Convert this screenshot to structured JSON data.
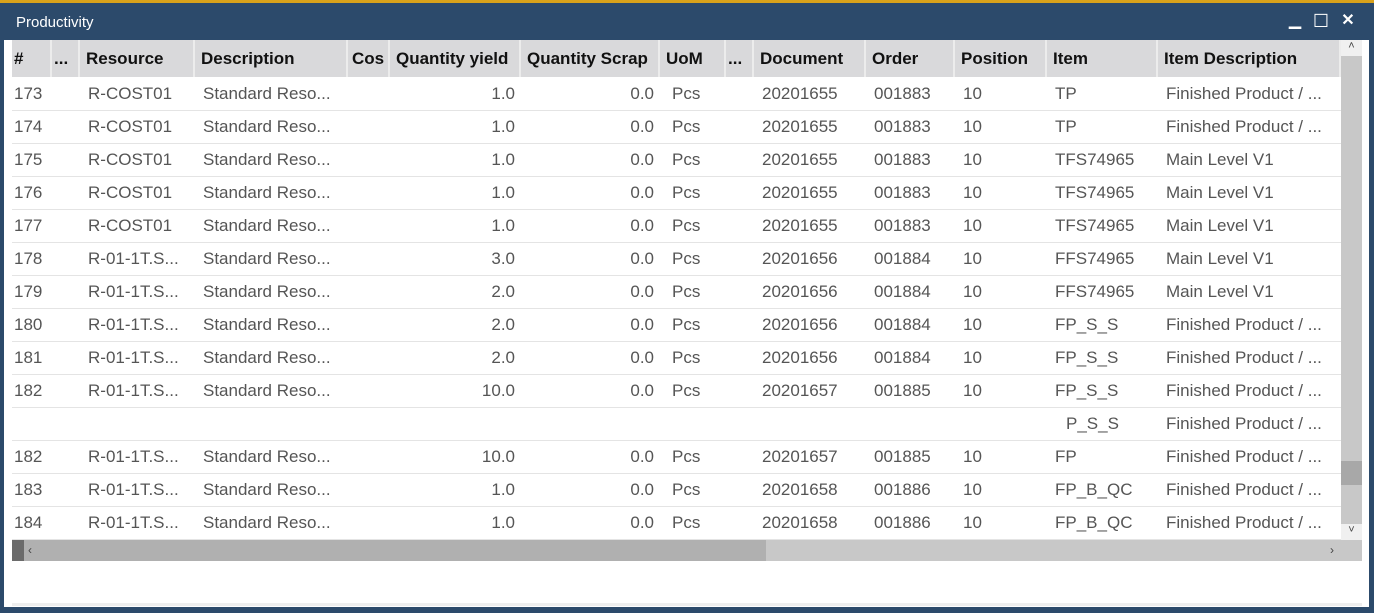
{
  "window": {
    "title": "Productivity",
    "minimize": "▁",
    "maximize": "☐",
    "close": "✕",
    "accent": "#d9a21b",
    "frame_color": "#2c4a6b"
  },
  "columns": [
    "#",
    "...",
    "Resource",
    "Description",
    "Cos",
    "Quantity yield",
    "Quantity Scrap",
    "UoM",
    "...",
    "Document",
    "Order",
    "Position",
    "Item",
    "Item Description"
  ],
  "rows": [
    [
      "173",
      "",
      "R-COST01",
      "Standard Reso...",
      "",
      "1.0",
      "0.0",
      "Pcs",
      "",
      "20201655",
      "001883",
      "10",
      "TP",
      "Finished Product / ..."
    ],
    [
      "174",
      "",
      "R-COST01",
      "Standard Reso...",
      "",
      "1.0",
      "0.0",
      "Pcs",
      "",
      "20201655",
      "001883",
      "10",
      "TP",
      "Finished Product / ..."
    ],
    [
      "175",
      "",
      "R-COST01",
      "Standard Reso...",
      "",
      "1.0",
      "0.0",
      "Pcs",
      "",
      "20201655",
      "001883",
      "10",
      "TFS74965",
      "Main Level V1"
    ],
    [
      "176",
      "",
      "R-COST01",
      "Standard Reso...",
      "",
      "1.0",
      "0.0",
      "Pcs",
      "",
      "20201655",
      "001883",
      "10",
      "TFS74965",
      "Main Level V1"
    ],
    [
      "177",
      "",
      "R-COST01",
      "Standard Reso...",
      "",
      "1.0",
      "0.0",
      "Pcs",
      "",
      "20201655",
      "001883",
      "10",
      "TFS74965",
      "Main Level V1"
    ],
    [
      "178",
      "",
      "R-01-1T.S...",
      "Standard Reso...",
      "",
      "3.0",
      "0.0",
      "Pcs",
      "",
      "20201656",
      "001884",
      "10",
      "FFS74965",
      "Main Level V1"
    ],
    [
      "179",
      "",
      "R-01-1T.S...",
      "Standard Reso...",
      "",
      "2.0",
      "0.0",
      "Pcs",
      "",
      "20201656",
      "001884",
      "10",
      "FFS74965",
      "Main Level V1"
    ],
    [
      "180",
      "",
      "R-01-1T.S...",
      "Standard Reso...",
      "",
      "2.0",
      "0.0",
      "Pcs",
      "",
      "20201656",
      "001884",
      "10",
      "FP_S_S",
      "Finished Product / ..."
    ],
    [
      "181",
      "",
      "R-01-1T.S...",
      "Standard Reso...",
      "",
      "2.0",
      "0.0",
      "Pcs",
      "",
      "20201656",
      "001884",
      "10",
      "FP_S_S",
      "Finished Product / ..."
    ],
    [
      "182",
      "",
      "R-01-1T.S...",
      "Standard Reso...",
      "",
      "10.0",
      "0.0",
      "Pcs",
      "",
      "20201657",
      "001885",
      "10",
      "FP_S_S",
      "Finished Product / ..."
    ],
    [
      "",
      "",
      "",
      "",
      "",
      "",
      "",
      "",
      "",
      "",
      "",
      "",
      "P_S_S",
      "Finished Product / ..."
    ],
    [
      "182",
      "",
      "R-01-1T.S...",
      "Standard Reso...",
      "",
      "10.0",
      "0.0",
      "Pcs",
      "",
      "20201657",
      "001885",
      "10",
      "FP",
      "Finished Product / ..."
    ],
    [
      "183",
      "",
      "R-01-1T.S...",
      "Standard Reso...",
      "",
      "1.0",
      "0.0",
      "Pcs",
      "",
      "20201658",
      "001886",
      "10",
      "FP_B_QC",
      "Finished Product / ..."
    ],
    [
      "184",
      "",
      "R-01-1T.S...",
      "Standard Reso...",
      "",
      "1.0",
      "0.0",
      "Pcs",
      "",
      "20201658",
      "001886",
      "10",
      "FP_B_QC",
      "Finished Product / ..."
    ]
  ],
  "scroll": {
    "up": "˄",
    "down": "˅",
    "left": "‹",
    "right": "›"
  }
}
